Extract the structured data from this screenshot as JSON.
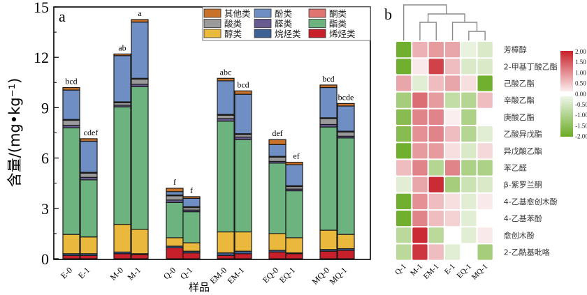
{
  "chart_data": [
    {
      "type": "bar",
      "stacked": true,
      "panel_label": "a",
      "title": "",
      "xlabel": "样品",
      "ylabel": "含量/(mg•kg⁻¹)",
      "ylim": [
        0,
        15
      ],
      "yticks": [
        0,
        3,
        6,
        9,
        12,
        15
      ],
      "grid": false,
      "legend_position": "top-right",
      "categories": [
        "E-0",
        "E-1",
        "M-0",
        "M-1",
        "Q-0",
        "Q-1",
        "EM-0",
        "EM-1",
        "EQ-0",
        "EQ-1",
        "MQ-0",
        "MQ-1"
      ],
      "significance_labels": [
        "bcd",
        "cdef",
        "ab",
        "a",
        "f",
        "f",
        "abc",
        "bcd",
        "def",
        "ef",
        "bcd",
        "bcde"
      ],
      "series": [
        {
          "name": "烯烃类",
          "color": "#c8202a",
          "values": [
            0.2,
            0.2,
            0.3,
            0.25,
            0.65,
            0.35,
            0.2,
            0.3,
            0.4,
            0.3,
            0.45,
            0.5
          ]
        },
        {
          "name": "烷烃类",
          "color": "#3d5f93",
          "values": [
            0.1,
            0.1,
            0.1,
            0.05,
            0.1,
            0.1,
            0.15,
            0.15,
            0.1,
            0.05,
            0.1,
            0.1
          ]
        },
        {
          "name": "醇类",
          "color": "#e9b83c",
          "values": [
            1.15,
            1.0,
            1.65,
            1.45,
            0.5,
            0.5,
            1.25,
            1.15,
            1.0,
            0.9,
            1.15,
            0.85
          ]
        },
        {
          "name": "酯类",
          "color": "#6db37f",
          "values": [
            6.35,
            3.4,
            7.0,
            8.5,
            2.1,
            1.85,
            6.6,
            5.5,
            4.2,
            2.8,
            6.15,
            5.75
          ]
        },
        {
          "name": "醛类",
          "color": "#685b8f",
          "values": [
            0.15,
            0.15,
            0.1,
            0.15,
            0.15,
            0.1,
            0.15,
            0.15,
            0.1,
            0.1,
            0.15,
            0.1
          ]
        },
        {
          "name": "酸类",
          "color": "#9a9a9a",
          "values": [
            0.3,
            0.25,
            0.15,
            0.3,
            0.25,
            0.15,
            0.2,
            0.15,
            0.25,
            0.15,
            0.35,
            0.25
          ]
        },
        {
          "name": "酮类",
          "color": "#e07470",
          "values": [
            0.05,
            0.05,
            0.05,
            0.05,
            0.05,
            0.05,
            0.05,
            0.05,
            0.05,
            0.05,
            0.05,
            0.05
          ]
        },
        {
          "name": "酚类",
          "color": "#6f8fc4",
          "values": [
            1.75,
            1.85,
            2.75,
            3.35,
            0.2,
            0.5,
            2.0,
            2.35,
            0.7,
            1.25,
            1.8,
            1.5
          ]
        },
        {
          "name": "其他类",
          "color": "#c77129",
          "values": [
            0.15,
            0.15,
            0.1,
            0.15,
            0.2,
            0.1,
            0.15,
            0.2,
            0.3,
            0.15,
            0.15,
            0.15
          ]
        }
      ],
      "legend_order": [
        "其他类",
        "酚类",
        "酮类",
        "酸类",
        "醛类",
        "酯类",
        "醇类",
        "烷烃类",
        "烯烃类"
      ]
    },
    {
      "type": "heatmap",
      "panel_label": "b",
      "columns": [
        "Q-1",
        "M-1",
        "EM-1",
        "E-1",
        "EQ-1",
        "MQ-1"
      ],
      "rows": [
        "芳樟醇",
        "2-甲基丁酸乙酯",
        "己酸乙酯",
        "辛酸乙酯",
        "庚酸乙酯",
        "乙酸异戊酯",
        "异戊酸乙酯",
        "苯乙醛",
        "β-紫罗兰酮",
        "4-乙基愈创木酚",
        "4-乙基苯酚",
        "愈创木酚",
        "2-乙酰基吡咯"
      ],
      "values": [
        [
          -1.9,
          0.7,
          0.9,
          0.8,
          -0.3,
          -0.5
        ],
        [
          -1.9,
          0.2,
          1.7,
          0.6,
          -0.5,
          -0.5
        ],
        [
          0.8,
          -0.4,
          0.6,
          0.8,
          0.3,
          -1.9
        ],
        [
          -1.2,
          1.3,
          0.9,
          -0.8,
          -1.0,
          0.6
        ],
        [
          -1.6,
          1.1,
          1.1,
          0.15,
          -1.1,
          0.0
        ],
        [
          -1.6,
          1.0,
          1.1,
          0.6,
          -1.0,
          -0.4
        ],
        [
          -1.9,
          0.9,
          0.9,
          0.3,
          -0.5,
          0.35
        ],
        [
          0.6,
          1.1,
          -1.0,
          1.1,
          -1.1,
          -1.1
        ],
        [
          -0.4,
          0.8,
          1.9,
          -1.2,
          -0.7,
          -0.5
        ],
        [
          -1.9,
          1.0,
          0.6,
          0.3,
          -0.4,
          0.2
        ],
        [
          -1.9,
          1.1,
          0.6,
          0.4,
          -0.4,
          0.0
        ],
        [
          -0.9,
          1.9,
          -0.9,
          0.0,
          -0.4,
          0.2
        ],
        [
          -0.9,
          1.8,
          0.6,
          -0.4,
          0.0,
          -1.2
        ]
      ],
      "colorbar": {
        "min": -2.0,
        "max": 2.0,
        "ticks": [
          "2.00",
          "1.50",
          "1.00",
          "0.50",
          "0.00",
          "-0.50",
          "-1.00",
          "-1.50",
          "-2.00"
        ],
        "low_color": "#6aab24",
        "mid_color": "#ffffff",
        "high_color": "#c8202a"
      },
      "column_dendrogram": "((Q-1),((M-1,EM-1),(E-1,(EQ-1,MQ-1))))",
      "legend_position": "right"
    }
  ]
}
